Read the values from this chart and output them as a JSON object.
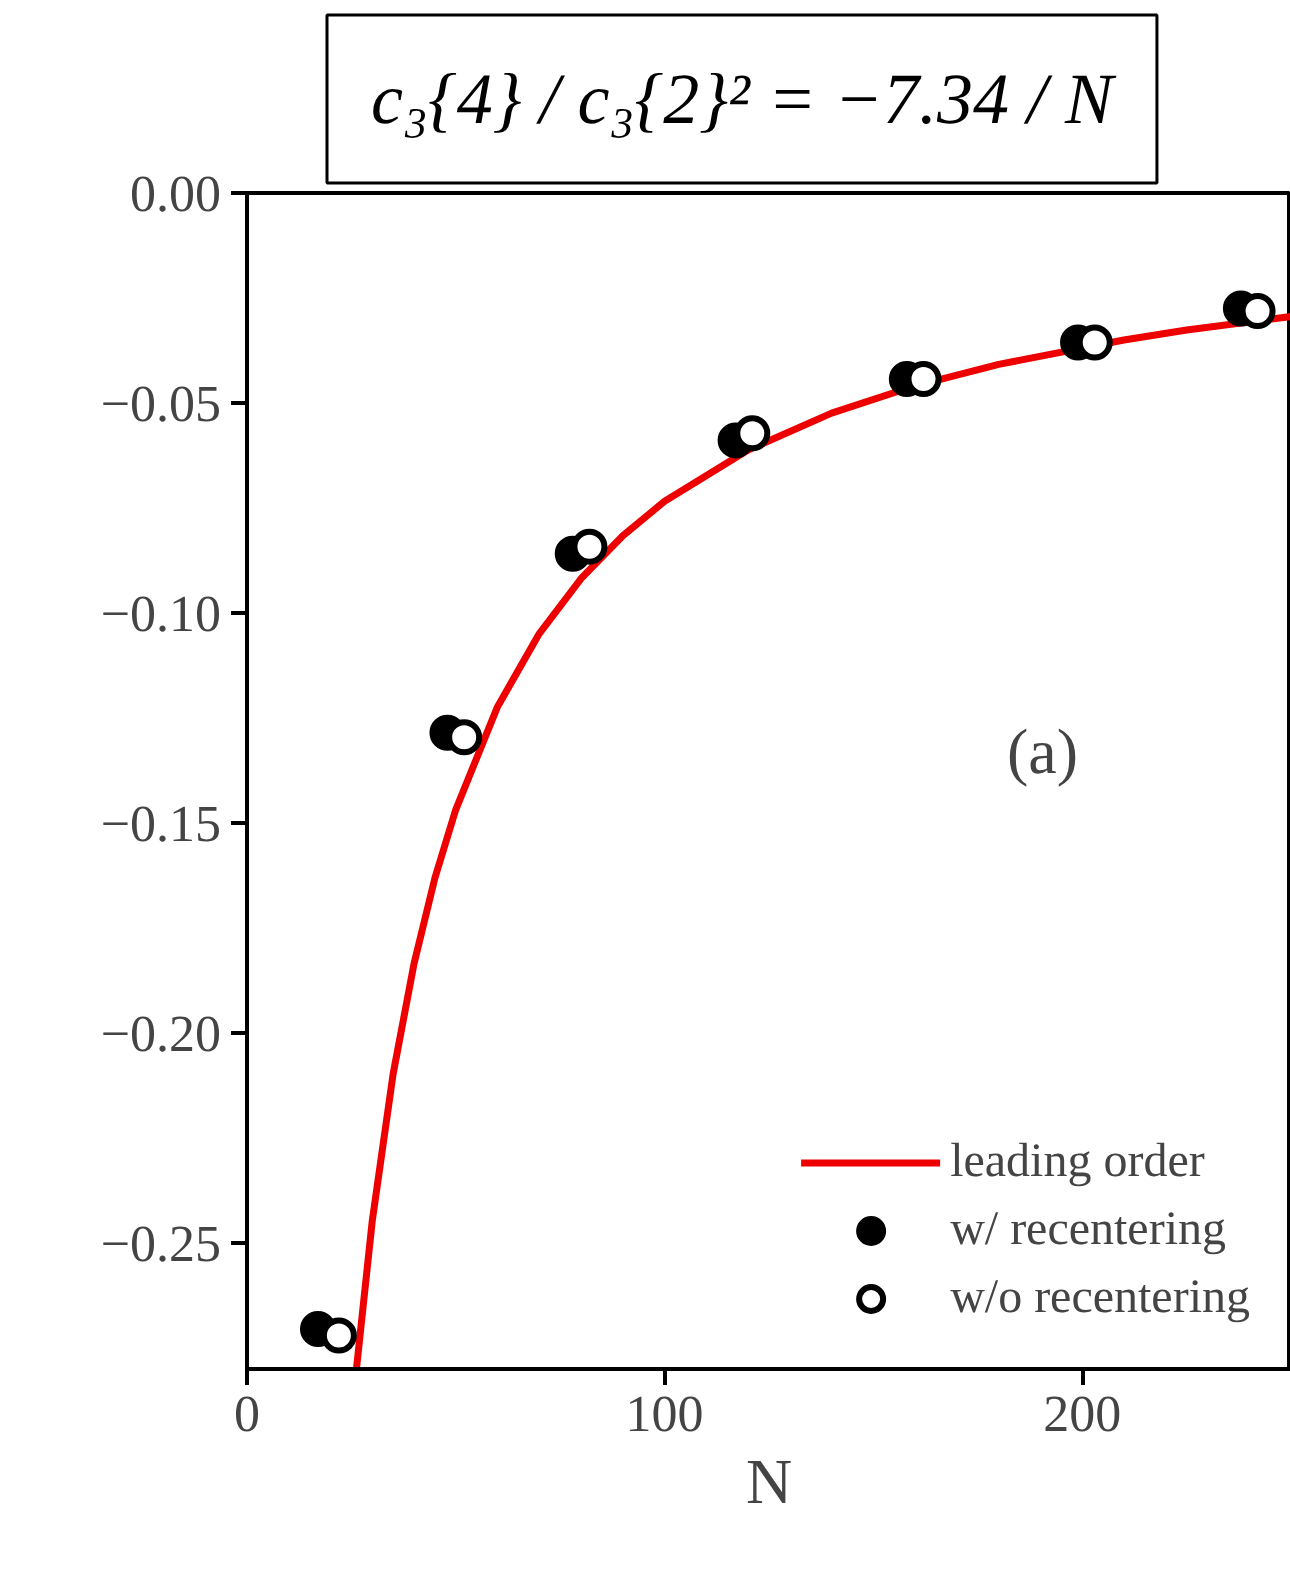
{
  "chart_data": {
    "type": "scatter",
    "xlabel": "N",
    "x": [
      17,
      48,
      78,
      117,
      158,
      199,
      238
    ],
    "series": [
      {
        "name": "leading order",
        "type": "line",
        "color": "#ee0000",
        "x": [
          26.25,
          30,
          35,
          40,
          45,
          50,
          60,
          70,
          80,
          90,
          100,
          120,
          140,
          160,
          180,
          210,
          225,
          250
        ],
        "values": [
          -0.2796,
          -0.2447,
          -0.2097,
          -0.1835,
          -0.1631,
          -0.1468,
          -0.1223,
          -0.1049,
          -0.0918,
          -0.0816,
          -0.0734,
          -0.0612,
          -0.0524,
          -0.0459,
          -0.0408,
          -0.035,
          -0.0326,
          -0.0294
        ]
      },
      {
        "name": "w/ recentering",
        "color": "#000000",
        "marker": "circle",
        "values": [
          -0.2705,
          -0.1285,
          -0.0859,
          -0.0589,
          -0.0443,
          -0.0356,
          -0.0275
        ]
      },
      {
        "name": "w/o recentering",
        "color": "#ffffff",
        "marker": "circle",
        "x": [
          22,
          52,
          82,
          121,
          162,
          203,
          242
        ],
        "values": [
          -0.272,
          -0.1296,
          -0.0842,
          -0.0572,
          -0.0443,
          -0.0356,
          -0.0281
        ]
      }
    ],
    "xlim": [
      0,
      250
    ],
    "ylim": [
      -0.28,
      0
    ],
    "xticks": [
      0,
      100,
      200
    ],
    "yticks": [
      {
        "value": 0,
        "label": "0.00"
      },
      {
        "value": -0.05,
        "label": "−0.05"
      },
      {
        "value": -0.1,
        "label": "−0.10"
      },
      {
        "value": -0.15,
        "label": "−0.15"
      },
      {
        "value": -0.2,
        "label": "−0.20"
      },
      {
        "value": -0.25,
        "label": "−0.25"
      }
    ],
    "annotations": [
      "c₃{4} / c₃{2}² = −7.34 / N",
      "(a)"
    ],
    "legend": "bottom right",
    "grid": false
  }
}
